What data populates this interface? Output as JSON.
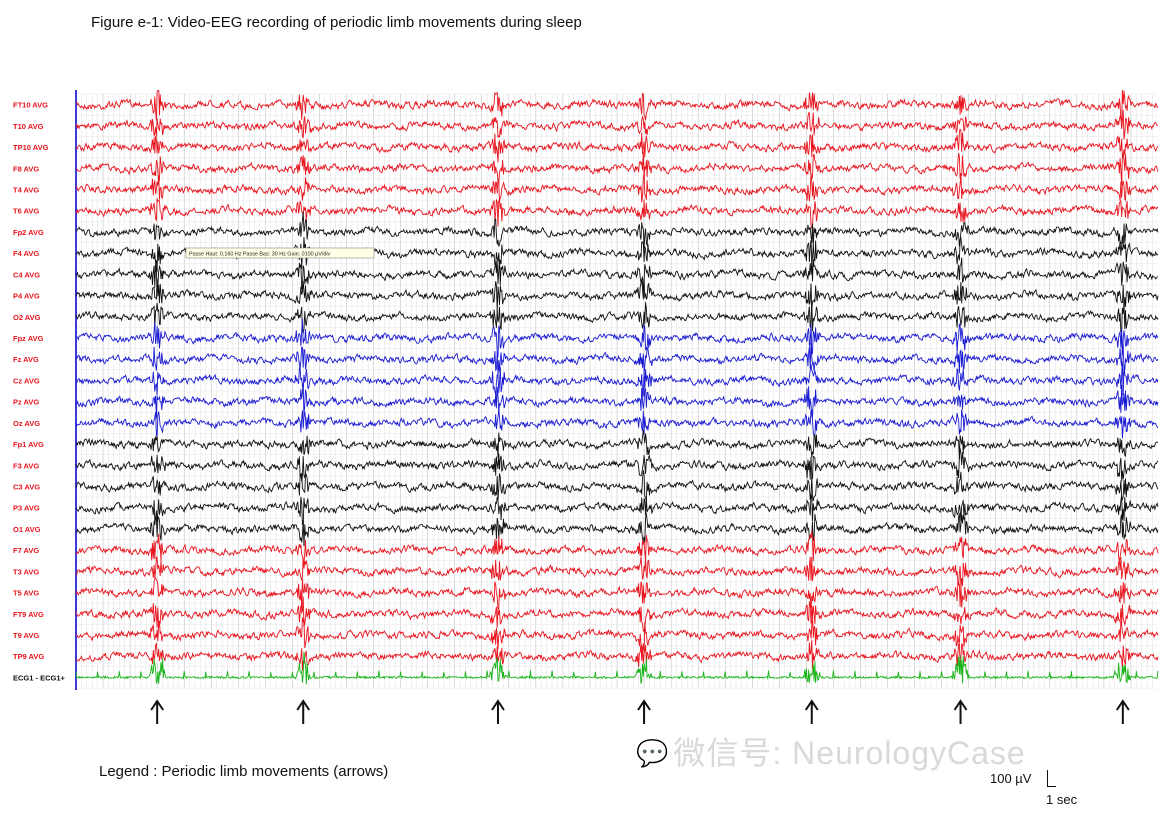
{
  "title": "Figure e-1: Video-EEG recording of periodic limb movements during sleep",
  "legend": "Legend : Periodic limb movements (arrows)",
  "watermark": "微信号: NeurologyCase",
  "scale": {
    "amplitude": "100 µV",
    "time": "1 sec"
  },
  "filter_tooltip": "Passe Haut: 0,160 Hz    Passe Bas: 30 Hz    Gain: 0100 µV/div",
  "colors": {
    "red": "#e8141e",
    "black": "#111111",
    "blue": "#1a1ad2",
    "green": "#18b418",
    "axis": "#3a3ad8",
    "grid": "#c8c8c8"
  },
  "chart_data": {
    "type": "line",
    "title": "Figure e-1: Video-EEG recording of periodic limb movements during sleep",
    "xlabel": "",
    "ylabel": "",
    "grid": true,
    "channels": [
      {
        "label": "FT10 AVG",
        "color": "red"
      },
      {
        "label": "T10 AVG",
        "color": "red"
      },
      {
        "label": "TP10 AVG",
        "color": "red"
      },
      {
        "label": "F8 AVG",
        "color": "red"
      },
      {
        "label": "T4 AVG",
        "color": "red"
      },
      {
        "label": "T6 AVG",
        "color": "red"
      },
      {
        "label": "Fp2 AVG",
        "color": "black"
      },
      {
        "label": "F4 AVG",
        "color": "black"
      },
      {
        "label": "C4 AVG",
        "color": "black"
      },
      {
        "label": "P4 AVG",
        "color": "black"
      },
      {
        "label": "O2 AVG",
        "color": "black"
      },
      {
        "label": "Fpz AVG",
        "color": "blue"
      },
      {
        "label": "Fz AVG",
        "color": "blue"
      },
      {
        "label": "Cz AVG",
        "color": "blue"
      },
      {
        "label": "Pz AVG",
        "color": "blue"
      },
      {
        "label": "Oz AVG",
        "color": "blue"
      },
      {
        "label": "Fp1 AVG",
        "color": "black"
      },
      {
        "label": "F3 AVG",
        "color": "black"
      },
      {
        "label": "C3 AVG",
        "color": "black"
      },
      {
        "label": "P3 AVG",
        "color": "black"
      },
      {
        "label": "O1 AVG",
        "color": "black"
      },
      {
        "label": "F7 AVG",
        "color": "red"
      },
      {
        "label": "T3 AVG",
        "color": "red"
      },
      {
        "label": "T5 AVG",
        "color": "red"
      },
      {
        "label": "FT9 AVG",
        "color": "red"
      },
      {
        "label": "T9 AVG",
        "color": "red"
      },
      {
        "label": "TP9 AVG",
        "color": "red"
      },
      {
        "label": "ECG1 - ECG1+",
        "color": "green"
      }
    ],
    "event_times_sec": [
      3.0,
      8.4,
      15.6,
      21.0,
      27.2,
      32.7,
      38.7
    ],
    "duration_sec": 40,
    "scale_bar": {
      "amplitude_uV": 100,
      "time_sec": 1
    }
  }
}
